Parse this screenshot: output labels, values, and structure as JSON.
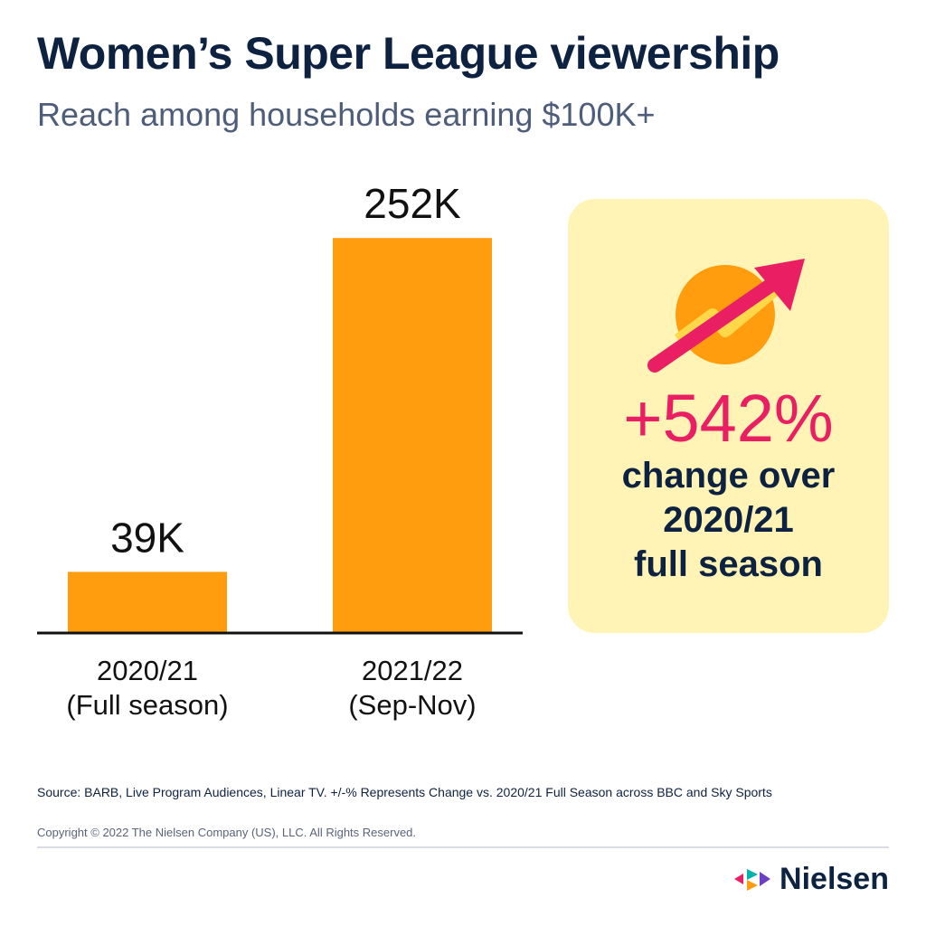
{
  "header": {
    "title": "Women’s Super League viewership",
    "subtitle": "Reach among households earning $100K+"
  },
  "chart_data": {
    "type": "bar",
    "categories": [
      [
        "2020/21",
        "(Full season)"
      ],
      [
        "2021/22",
        "(Sep-Nov)"
      ]
    ],
    "values": [
      39,
      252
    ],
    "value_labels": [
      "39K",
      "252K"
    ],
    "unit": "K",
    "ylim": [
      0,
      300
    ],
    "grid": false,
    "bar_color": "#ff9d0f"
  },
  "callout": {
    "percent": "+542%",
    "lines": [
      "change over",
      "2020/21",
      "full season"
    ],
    "icon": "trending-up-arrow-icon",
    "bg_color": "#fff3b5",
    "percent_color": "#e91e63"
  },
  "footer": {
    "source": "Source: BARB, Live Program Audiences, Linear TV. +/-% Represents Change vs. 2020/21 Full Season across BBC and Sky Sports",
    "copyright": "Copyright © 2022 The Nielsen Company (US), LLC. All Rights Reserved.",
    "brand": "Nielsen"
  }
}
